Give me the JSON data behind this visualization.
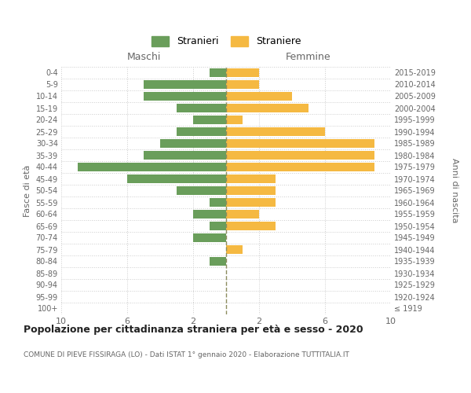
{
  "age_groups": [
    "100+",
    "95-99",
    "90-94",
    "85-89",
    "80-84",
    "75-79",
    "70-74",
    "65-69",
    "60-64",
    "55-59",
    "50-54",
    "45-49",
    "40-44",
    "35-39",
    "30-34",
    "25-29",
    "20-24",
    "15-19",
    "10-14",
    "5-9",
    "0-4"
  ],
  "birth_years": [
    "≤ 1919",
    "1920-1924",
    "1925-1929",
    "1930-1934",
    "1935-1939",
    "1940-1944",
    "1945-1949",
    "1950-1954",
    "1955-1959",
    "1960-1964",
    "1965-1969",
    "1970-1974",
    "1975-1979",
    "1980-1984",
    "1985-1989",
    "1990-1994",
    "1995-1999",
    "2000-2004",
    "2005-2009",
    "2010-2014",
    "2015-2019"
  ],
  "males": [
    0,
    0,
    0,
    0,
    1,
    0,
    2,
    1,
    2,
    1,
    3,
    6,
    9,
    5,
    4,
    3,
    2,
    3,
    5,
    5,
    1
  ],
  "females": [
    0,
    0,
    0,
    0,
    0,
    1,
    0,
    3,
    2,
    3,
    3,
    3,
    9,
    9,
    9,
    6,
    1,
    5,
    4,
    2,
    2
  ],
  "male_color": "#6a9e5b",
  "female_color": "#f5b942",
  "center_line_color": "#8c8c5e",
  "title": "Popolazione per cittadinanza straniera per età e sesso - 2020",
  "subtitle": "COMUNE DI PIEVE FISSIRAGA (LO) - Dati ISTAT 1° gennaio 2020 - Elaborazione TUTTITALIA.IT",
  "ylabel_left": "Fasce di età",
  "ylabel_right": "Anni di nascita",
  "xlabel_left": "Maschi",
  "xlabel_right": "Femmine",
  "legend_male": "Stranieri",
  "legend_female": "Straniere",
  "xlim": 10,
  "background_color": "#ffffff",
  "grid_color": "#cccccc",
  "label_color": "#666666",
  "title_color": "#222222"
}
